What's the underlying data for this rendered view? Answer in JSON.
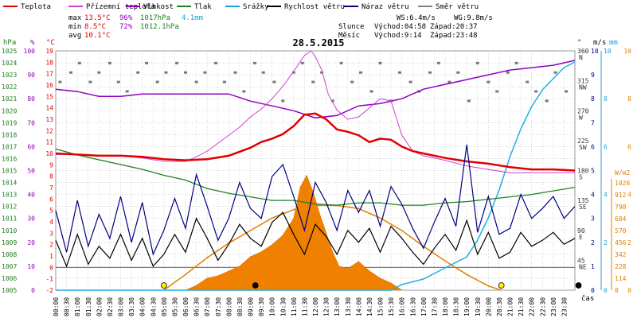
{
  "chart_data": {
    "type": "line",
    "title": "28.5.2015",
    "legend": [
      {
        "key": "teplota",
        "label": "Teplota",
        "color": "#e00000"
      },
      {
        "key": "prizemni",
        "label": "Přízemní teplota",
        "color": "#d040d0"
      },
      {
        "key": "vlhkost",
        "label": "Vlhkost",
        "color": "#9000c0"
      },
      {
        "key": "tlak",
        "label": "Tlak",
        "color": "#208020"
      },
      {
        "key": "srazky",
        "label": "Srážky",
        "color": "#20a0d0"
      },
      {
        "key": "rychlost",
        "label": "Rychlost větru",
        "color": "#000000"
      },
      {
        "key": "naraz",
        "label": "Náraz větru",
        "color": "#000080"
      },
      {
        "key": "smer",
        "label": "Směr větru",
        "color": "#808080"
      }
    ],
    "stats": {
      "max_label": "max",
      "max_temp": "13.5°C",
      "max_hum": "96%",
      "max_press": "1017hPa",
      "rain": "4.1mm",
      "min_label": "min",
      "min_temp": "8.5°C",
      "min_hum": "72%",
      "min_press": "1012.1hPa",
      "avg_label": "avg",
      "avg_temp": "10.1°C",
      "ws": "WS:6.4m/s",
      "wg": "WG:9.8m/s",
      "sun_label": "Slunce",
      "sunrise": "Východ:04:58",
      "sunset": "Západ:20:37",
      "moon_label": "Měsíc",
      "moonrise": "Východ:9:14",
      "moonset": "Západ:23:48"
    },
    "axes": {
      "hpa_unit": "hPa",
      "pct_unit": "%",
      "temp_unit": "°C",
      "hpa_ticks": [
        "1025",
        "1024",
        "1023",
        "1022",
        "1021",
        "1020",
        "1019",
        "1018",
        "1017",
        "1016",
        "1015",
        "1014",
        "1013",
        "1012",
        "1011",
        "1010",
        "1009",
        "1008",
        "1007",
        "1006",
        "1005"
      ],
      "pct_ticks": [
        "100",
        "90",
        "80",
        "70",
        "60",
        "50",
        "40",
        "30",
        "20",
        "10",
        "0"
      ],
      "temp_ticks": [
        "19",
        "18",
        "17",
        "16",
        "15",
        "14",
        "13",
        "12",
        "11",
        "10",
        "9",
        "8",
        "7",
        "6",
        "5",
        "4",
        "3",
        "2",
        "1",
        "0",
        "-1",
        "-2"
      ],
      "dir_unit": "°",
      "dir_ticks": [
        {
          "deg": "360",
          "lbl": "N"
        },
        {
          "deg": "315",
          "lbl": "NW"
        },
        {
          "deg": "270",
          "lbl": "W"
        },
        {
          "deg": "225",
          "lbl": "SW"
        },
        {
          "deg": "180",
          "lbl": "S"
        },
        {
          "deg": "135",
          "lbl": "SE"
        },
        {
          "deg": "90",
          "lbl": "E"
        },
        {
          "deg": "45",
          "lbl": "NE"
        },
        {
          "deg": "",
          "lbl": ""
        }
      ],
      "ms_unit": "m/s",
      "ms_ticks": [
        "10",
        "9",
        "8",
        "7",
        "6",
        "5",
        "4",
        "3",
        "2",
        "1",
        "0"
      ],
      "mm_unit": "mm",
      "mm_ticks": [
        "10",
        "8",
        "6",
        "4",
        "2",
        "0"
      ],
      "wm2_unit": "W/m2",
      "wm2_ticks": [
        "1026",
        "912",
        "798",
        "684",
        "570",
        "456",
        "342",
        "228",
        "114",
        "0"
      ],
      "rain_scale_ticks": [
        "10",
        "8",
        "6",
        "4",
        "2",
        "0"
      ],
      "time_label": "čas",
      "time_ticks": [
        "00:00",
        "00:30",
        "01:00",
        "01:30",
        "02:00",
        "02:30",
        "03:00",
        "03:30",
        "04:00",
        "04:30",
        "05:00",
        "05:30",
        "06:00",
        "06:30",
        "07:00",
        "07:30",
        "08:00",
        "08:30",
        "09:00",
        "09:30",
        "10:00",
        "10:30",
        "11:00",
        "11:30",
        "12:00",
        "12:30",
        "13:00",
        "13:30",
        "14:00",
        "14:30",
        "15:00",
        "15:30",
        "16:00",
        "16:30",
        "17:00",
        "17:30",
        "18:00",
        "18:30",
        "19:00",
        "19:30",
        "20:00",
        "20:30",
        "21:00",
        "21:30",
        "22:00",
        "22:30",
        "23:00",
        "23:30"
      ]
    },
    "series": {
      "teplota": {
        "x": [
          0,
          1,
          2,
          3,
          4,
          5,
          6,
          7,
          8,
          9,
          9.5,
          10,
          10.5,
          11,
          11.5,
          12,
          12.5,
          13,
          13.5,
          14,
          14.5,
          15,
          15.5,
          16,
          16.5,
          17,
          18,
          19,
          20,
          21,
          22,
          23,
          24
        ],
        "y": [
          10.0,
          9.9,
          9.8,
          9.8,
          9.7,
          9.5,
          9.4,
          9.5,
          9.8,
          10.5,
          11.0,
          11.3,
          11.7,
          12.4,
          13.4,
          13.5,
          13.0,
          12.1,
          11.9,
          11.6,
          11.0,
          11.3,
          11.2,
          10.6,
          10.2,
          10.0,
          9.6,
          9.3,
          9.1,
          8.8,
          8.6,
          8.6,
          8.5
        ]
      },
      "prizemni": {
        "x": [
          0,
          1,
          2,
          3,
          4,
          5,
          6,
          6.5,
          7,
          7.5,
          8,
          8.5,
          9,
          9.5,
          10,
          10.5,
          11,
          11.5,
          11.8,
          12,
          12.3,
          12.6,
          13,
          13.5,
          14,
          14.5,
          15,
          15.5,
          16,
          16.5,
          17,
          18,
          19,
          20,
          21,
          22,
          23,
          24
        ],
        "y": [
          9.9,
          9.9,
          9.8,
          9.8,
          9.6,
          9.3,
          9.3,
          9.7,
          10.2,
          10.9,
          11.6,
          12.3,
          13.2,
          13.9,
          14.8,
          15.9,
          17.2,
          18.6,
          19.0,
          18.5,
          17.3,
          15.2,
          13.8,
          13.0,
          13.2,
          14.0,
          14.8,
          14.6,
          11.6,
          10.2,
          9.8,
          9.4,
          8.9,
          8.6,
          8.3,
          8.3,
          8.3,
          8.3
        ]
      },
      "vlhkost": {
        "x": [
          0,
          1,
          2,
          3,
          4,
          5,
          6,
          7,
          8,
          9,
          10,
          11,
          12,
          13,
          14,
          15,
          16,
          17,
          18,
          19,
          20,
          21,
          22,
          23,
          24
        ],
        "y": [
          84,
          83,
          81,
          81,
          82,
          82,
          82,
          82,
          82,
          79,
          77,
          75,
          72,
          73,
          77,
          78,
          80,
          84,
          86,
          88,
          90,
          92,
          93,
          94,
          96
        ]
      },
      "tlak": {
        "x": [
          0,
          1,
          2,
          3,
          4,
          5,
          6,
          7,
          8,
          9,
          10,
          11,
          12,
          13,
          14,
          15,
          16,
          17,
          18,
          19,
          20,
          21,
          22,
          23,
          24
        ],
        "y": [
          1016.8,
          1016.3,
          1015.9,
          1015.5,
          1015.1,
          1014.6,
          1014.2,
          1013.5,
          1013.1,
          1012.8,
          1012.5,
          1012.5,
          1012.2,
          1012.1,
          1012.3,
          1012.3,
          1012.1,
          1012.1,
          1012.3,
          1012.4,
          1012.6,
          1012.8,
          1013.0,
          1013.3,
          1013.6
        ]
      },
      "srazky": {
        "x": [
          0,
          15.5,
          16,
          17,
          18,
          19,
          19.5,
          20,
          20.5,
          21,
          21.5,
          22,
          22.5,
          23,
          23.5,
          24
        ],
        "y": [
          0,
          0,
          0.1,
          0.2,
          0.4,
          0.6,
          0.9,
          1.3,
          1.8,
          2.4,
          2.9,
          3.3,
          3.6,
          3.8,
          4.0,
          4.1
        ]
      },
      "rychlost": {
        "x": [
          0,
          0.5,
          1,
          1.5,
          2,
          2.5,
          3,
          3.5,
          4,
          4.5,
          5,
          5.5,
          6,
          6.5,
          7,
          7.5,
          8,
          8.5,
          9,
          9.5,
          10,
          10.5,
          11,
          11.5,
          12,
          12.5,
          13,
          13.5,
          14,
          14.5,
          15,
          15.5,
          16,
          16.5,
          17,
          17.5,
          18,
          18.5,
          19,
          19.5,
          20,
          20.5,
          21,
          21.5,
          22,
          22.5,
          23,
          23.5,
          24
        ],
        "y": [
          2.5,
          1.2,
          2.8,
          1.3,
          2.2,
          1.6,
          2.8,
          1.5,
          2.6,
          1.2,
          1.8,
          2.8,
          1.9,
          3.6,
          2.6,
          1.5,
          2.3,
          3.3,
          2.6,
          2.2,
          3.4,
          3.9,
          2.8,
          1.8,
          3.3,
          2.7,
          1.8,
          3.0,
          2.4,
          3.1,
          1.9,
          3.2,
          2.6,
          1.9,
          1.3,
          2.1,
          2.8,
          2.0,
          3.5,
          1.8,
          2.9,
          1.6,
          1.9,
          2.9,
          2.2,
          2.5,
          2.9,
          2.3,
          2.6
        ]
      },
      "naraz": {
        "x": [
          0,
          0.5,
          1,
          1.5,
          2,
          2.5,
          3,
          3.5,
          4,
          4.5,
          5,
          5.5,
          6,
          6.5,
          7,
          7.5,
          8,
          8.5,
          9,
          9.5,
          10,
          10.5,
          11,
          11.5,
          12,
          12.5,
          13,
          13.5,
          14,
          14.5,
          15,
          15.5,
          16,
          16.5,
          17,
          17.5,
          18,
          18.5,
          19,
          19.5,
          20,
          20.5,
          21,
          21.5,
          22,
          22.5,
          23,
          23.5,
          24
        ],
        "y": [
          4.0,
          1.9,
          4.5,
          2.2,
          3.8,
          2.6,
          4.7,
          2.4,
          4.4,
          1.8,
          3.0,
          4.6,
          3.1,
          5.8,
          4.2,
          2.5,
          3.6,
          5.4,
          4.1,
          3.6,
          5.7,
          6.3,
          4.7,
          3.0,
          5.4,
          4.4,
          3.0,
          5.0,
          3.9,
          5.0,
          3.2,
          5.2,
          4.3,
          3.1,
          2.1,
          3.4,
          4.6,
          3.2,
          7.3,
          2.9,
          4.7,
          2.8,
          3.1,
          4.8,
          3.6,
          4.1,
          4.7,
          3.6,
          4.2
        ]
      },
      "smer": {
        "x": [
          0.2,
          0.7,
          1.1,
          1.6,
          2.0,
          2.5,
          2.9,
          3.3,
          3.8,
          4.2,
          4.7,
          5.1,
          5.6,
          6.0,
          6.5,
          6.9,
          7.4,
          7.8,
          8.3,
          8.7,
          9.2,
          9.6,
          10.1,
          10.5,
          11.0,
          11.4,
          11.9,
          12.3,
          12.8,
          13.2,
          13.7,
          14.1,
          14.6,
          15.0,
          15.5,
          15.9,
          16.4,
          16.8,
          17.3,
          17.7,
          18.2,
          18.6,
          19.1,
          19.5,
          20.0,
          20.4,
          20.9,
          21.3,
          21.8,
          22.2,
          22.7,
          23.1,
          23.6
        ],
        "y": [
          330,
          345,
          360,
          330,
          345,
          360,
          330,
          315,
          345,
          360,
          330,
          345,
          360,
          345,
          330,
          345,
          360,
          330,
          345,
          315,
          360,
          345,
          330,
          300,
          345,
          360,
          330,
          345,
          300,
          360,
          330,
          345,
          315,
          360,
          300,
          345,
          330,
          315,
          345,
          360,
          330,
          345,
          300,
          360,
          330,
          315,
          345,
          360,
          330,
          315,
          300,
          345,
          315
        ]
      },
      "zareni": {
        "x": [
          5.0,
          6,
          7,
          8,
          9,
          10,
          11,
          12,
          13,
          14,
          15,
          16,
          17,
          18,
          19,
          20,
          20.6
        ],
        "y": [
          0,
          150,
          310,
          450,
          570,
          690,
          770,
          810,
          810,
          780,
          690,
          570,
          420,
          280,
          150,
          40,
          0
        ]
      },
      "srazky_int": {
        "x": [
          6.0,
          6.5,
          7.0,
          7.5,
          8.0,
          8.5,
          9.0,
          9.5,
          10.0,
          10.5,
          11.0,
          11.3,
          11.6,
          11.9,
          12.2,
          12.5,
          12.8,
          13.1,
          13.5,
          14.0,
          14.5,
          15.0,
          15.5,
          16.0
        ],
        "y": [
          0,
          0.2,
          0.5,
          0.6,
          0.8,
          1.0,
          1.4,
          1.6,
          1.9,
          2.3,
          3.0,
          4.3,
          4.8,
          4.1,
          3.2,
          2.4,
          1.6,
          1.0,
          0.9,
          1.2,
          0.8,
          0.5,
          0.3,
          0
        ]
      }
    },
    "markers": {
      "sunrise_x": 5.0,
      "sunset_x": 20.6,
      "moonrise_x": 9.23,
      "moonset_x": 23.8
    },
    "ranges": {
      "time": [
        0,
        24
      ],
      "temp": [
        -2,
        19
      ],
      "hpa": [
        1005,
        1025
      ],
      "pct": [
        0,
        100
      ],
      "ms": [
        0,
        10
      ],
      "deg": [
        0,
        360
      ],
      "wm2": [
        0,
        1026
      ],
      "rain_int": [
        0,
        10
      ],
      "rain_sum": [
        0,
        10
      ]
    }
  }
}
